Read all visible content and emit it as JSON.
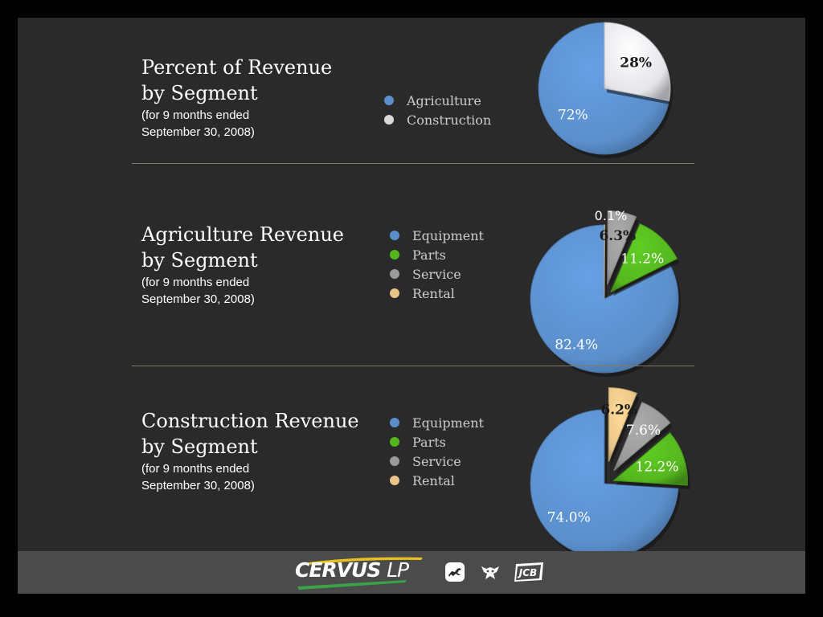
{
  "sections": [
    {
      "title_line1": "Percent of Revenue",
      "title_line2": "by Segment",
      "sub_line1": "(for 9 months ended",
      "sub_line2": "September 30, 2008)",
      "legend": [
        {
          "label": "Agriculture",
          "color": "#5b8fcc"
        },
        {
          "label": "Construction",
          "color": "#d9d9d9"
        }
      ]
    },
    {
      "title_line1": "Agriculture Revenue",
      "title_line2": "by Segment",
      "sub_line1": "(for 9 months ended",
      "sub_line2": "September 30, 2008)",
      "legend": [
        {
          "label": "Equipment",
          "color": "#5b8fcc"
        },
        {
          "label": "Parts",
          "color": "#55b71f"
        },
        {
          "label": "Service",
          "color": "#9a9a9a"
        },
        {
          "label": "Rental",
          "color": "#e9c488"
        }
      ]
    },
    {
      "title_line1": "Construction Revenue",
      "title_line2": "by Segment",
      "sub_line1": "(for 9 months ended",
      "sub_line2": "September 30, 2008)",
      "legend": [
        {
          "label": "Equipment",
          "color": "#5b8fcc"
        },
        {
          "label": "Parts",
          "color": "#55b71f"
        },
        {
          "label": "Service",
          "color": "#9a9a9a"
        },
        {
          "label": "Rental",
          "color": "#e9c488"
        }
      ]
    }
  ],
  "chart_data": [
    {
      "type": "pie",
      "title": "Percent of Revenue by Segment",
      "subtitle": "(for 9 months ended September 30, 2008)",
      "legend_position": "left",
      "slices": [
        {
          "name": "Agriculture",
          "value": 72,
          "label": "72%",
          "color": "#5b8fcc"
        },
        {
          "name": "Construction",
          "value": 28,
          "label": "28%",
          "color": "#e4e4ea"
        }
      ]
    },
    {
      "type": "pie",
      "title": "Agriculture Revenue by Segment",
      "subtitle": "(for 9 months ended September 30, 2008)",
      "legend_position": "left",
      "slices": [
        {
          "name": "Equipment",
          "value": 82.4,
          "label": "82.4%",
          "color": "#5b8fcc"
        },
        {
          "name": "Parts",
          "value": 11.2,
          "label": "11.2%",
          "color": "#55b71f"
        },
        {
          "name": "Service",
          "value": 6.3,
          "label": "6.3%",
          "color": "#9a9a9a"
        },
        {
          "name": "Rental",
          "value": 0.1,
          "label": "0.1%",
          "color": "#e9c488"
        }
      ]
    },
    {
      "type": "pie",
      "title": "Construction Revenue by Segment",
      "subtitle": "(for 9 months ended September 30, 2008)",
      "legend_position": "left",
      "slices": [
        {
          "name": "Equipment",
          "value": 74.0,
          "label": "74.0%",
          "color": "#5b8fcc"
        },
        {
          "name": "Parts",
          "value": 12.2,
          "label": "12.2%",
          "color": "#55b71f"
        },
        {
          "name": "Service",
          "value": 7.6,
          "label": "7.6%",
          "color": "#9a9a9a"
        },
        {
          "name": "Rental",
          "value": 6.2,
          "label": "6.2%",
          "color": "#e9c488"
        }
      ]
    }
  ],
  "footer": {
    "logo_main": "CERVUS",
    "logo_suffix": "LP",
    "brand_icons": [
      "deer-logo-icon",
      "bobcat-logo-icon",
      "jcb-logo-icon"
    ],
    "jcb_text": "JCB"
  }
}
